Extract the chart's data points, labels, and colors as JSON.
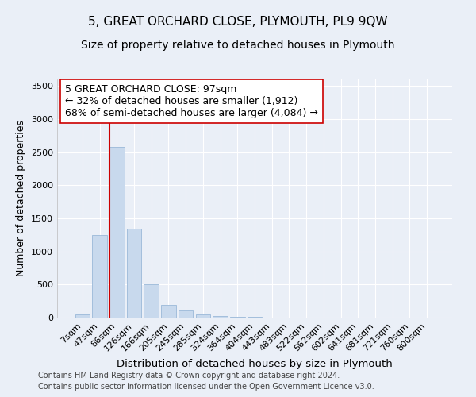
{
  "title": "5, GREAT ORCHARD CLOSE, PLYMOUTH, PL9 9QW",
  "subtitle": "Size of property relative to detached houses in Plymouth",
  "xlabel": "Distribution of detached houses by size in Plymouth",
  "ylabel": "Number of detached properties",
  "categories": [
    "7sqm",
    "47sqm",
    "86sqm",
    "126sqm",
    "166sqm",
    "205sqm",
    "245sqm",
    "285sqm",
    "324sqm",
    "364sqm",
    "404sqm",
    "443sqm",
    "483sqm",
    "522sqm",
    "562sqm",
    "602sqm",
    "641sqm",
    "681sqm",
    "721sqm",
    "760sqm",
    "800sqm"
  ],
  "values": [
    50,
    1250,
    2580,
    1340,
    500,
    195,
    110,
    50,
    30,
    15,
    7,
    3,
    2,
    0,
    0,
    0,
    0,
    0,
    0,
    0,
    0
  ],
  "bar_color": "#c8d9ed",
  "bar_edge_color": "#9ab8d8",
  "vline_color": "#cc0000",
  "annotation_text": "5 GREAT ORCHARD CLOSE: 97sqm\n← 32% of detached houses are smaller (1,912)\n68% of semi-detached houses are larger (4,084) →",
  "annotation_box_facecolor": "#ffffff",
  "annotation_box_edgecolor": "#cc0000",
  "ylim": [
    0,
    3600
  ],
  "yticks": [
    0,
    500,
    1000,
    1500,
    2000,
    2500,
    3000,
    3500
  ],
  "footnote1": "Contains HM Land Registry data © Crown copyright and database right 2024.",
  "footnote2": "Contains public sector information licensed under the Open Government Licence v3.0.",
  "bg_color": "#eaeff7",
  "plot_bg_color": "#eaeff7",
  "title_fontsize": 11,
  "subtitle_fontsize": 10,
  "xlabel_fontsize": 9.5,
  "ylabel_fontsize": 9,
  "tick_fontsize": 8,
  "footnote_fontsize": 7,
  "annotation_fontsize": 9
}
